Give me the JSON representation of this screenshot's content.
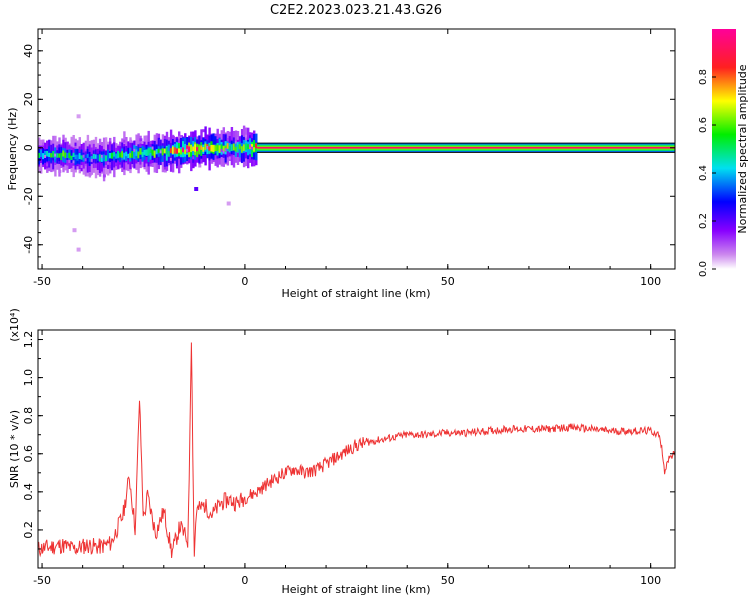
{
  "title": "C2E2.2023.023.21.43.G26",
  "colors": {
    "trace": "#ee3333",
    "axes": "#000000",
    "background": "#ffffff"
  },
  "chart_data": [
    {
      "type": "heatmap",
      "xlabel": "Height of straight line (km)",
      "ylabel": "Frequency (Hz)",
      "xlim": [
        -51,
        106
      ],
      "ylim": [
        -50,
        49
      ],
      "xticks": [
        -50,
        0,
        50,
        100
      ],
      "yticks": [
        -40,
        -20,
        0,
        20,
        40
      ],
      "grid": false,
      "colorbar": {
        "label": "Normalized spectral amplitude",
        "range": [
          0.0,
          1.0
        ],
        "ticks": [
          0.0,
          0.2,
          0.4,
          0.6,
          0.8
        ],
        "colormap": "rainbow (magenta-blue-cyan-green-yellow-red)"
      },
      "ridge": {
        "x": [
          -51,
          -45,
          -40,
          -35,
          -30,
          -25,
          -20,
          -15,
          -10,
          -5,
          0,
          3,
          20,
          50,
          80,
          106
        ],
        "frequency": [
          -3,
          -3,
          -4,
          -4,
          -3,
          -2,
          -2,
          -1,
          0,
          0,
          0,
          0,
          0,
          0,
          0,
          0
        ],
        "amplitude": [
          0.45,
          0.5,
          0.4,
          0.45,
          0.5,
          0.5,
          0.6,
          0.85,
          0.8,
          0.6,
          0.6,
          0.95,
          0.95,
          0.95,
          0.95,
          0.95
        ]
      },
      "outliers": [
        {
          "x": -12,
          "frequency": -17,
          "amplitude": 0.2
        },
        {
          "x": -4,
          "frequency": -23,
          "amplitude": 0.05
        },
        {
          "x": -41,
          "frequency": -42,
          "amplitude": 0.05
        },
        {
          "x": -42,
          "frequency": -34,
          "amplitude": 0.05
        },
        {
          "x": -41,
          "frequency": 13,
          "amplitude": 0.05
        }
      ]
    },
    {
      "type": "line",
      "xlabel": "Height of straight line (km)",
      "ylabel": "SNR (10 * v/v)",
      "y_multiplier": "(x10⁴)",
      "xlim": [
        -51,
        106
      ],
      "ylim": [
        0,
        1.25
      ],
      "xticks": [
        -50,
        0,
        50,
        100
      ],
      "yticks": [
        0.2,
        0.4,
        0.6,
        0.8,
        1.0,
        1.2
      ],
      "grid": false,
      "series": [
        {
          "x": [
            -51,
            -48,
            -45,
            -42,
            -39,
            -36,
            -33,
            -30,
            -28.5,
            -27,
            -26,
            -25,
            -24,
            -22,
            -20,
            -18,
            -16,
            -14,
            -13.2,
            -12.5,
            -12,
            -10,
            -8,
            -6,
            -4,
            -2,
            0,
            3,
            6,
            9,
            12,
            15,
            18,
            21,
            24,
            27,
            30,
            35,
            40,
            45,
            50,
            55,
            60,
            65,
            70,
            75,
            80,
            85,
            90,
            95,
            100,
            102,
            103,
            103.5,
            104,
            106
          ],
          "y": [
            0.1,
            0.11,
            0.12,
            0.1,
            0.12,
            0.11,
            0.13,
            0.28,
            0.48,
            0.2,
            0.9,
            0.25,
            0.38,
            0.18,
            0.3,
            0.08,
            0.22,
            0.14,
            1.22,
            0.05,
            0.3,
            0.33,
            0.28,
            0.34,
            0.36,
            0.34,
            0.37,
            0.4,
            0.45,
            0.49,
            0.52,
            0.5,
            0.52,
            0.56,
            0.6,
            0.64,
            0.66,
            0.68,
            0.7,
            0.7,
            0.71,
            0.71,
            0.72,
            0.73,
            0.73,
            0.73,
            0.74,
            0.73,
            0.72,
            0.72,
            0.72,
            0.7,
            0.6,
            0.48,
            0.57,
            0.6
          ]
        }
      ]
    }
  ]
}
